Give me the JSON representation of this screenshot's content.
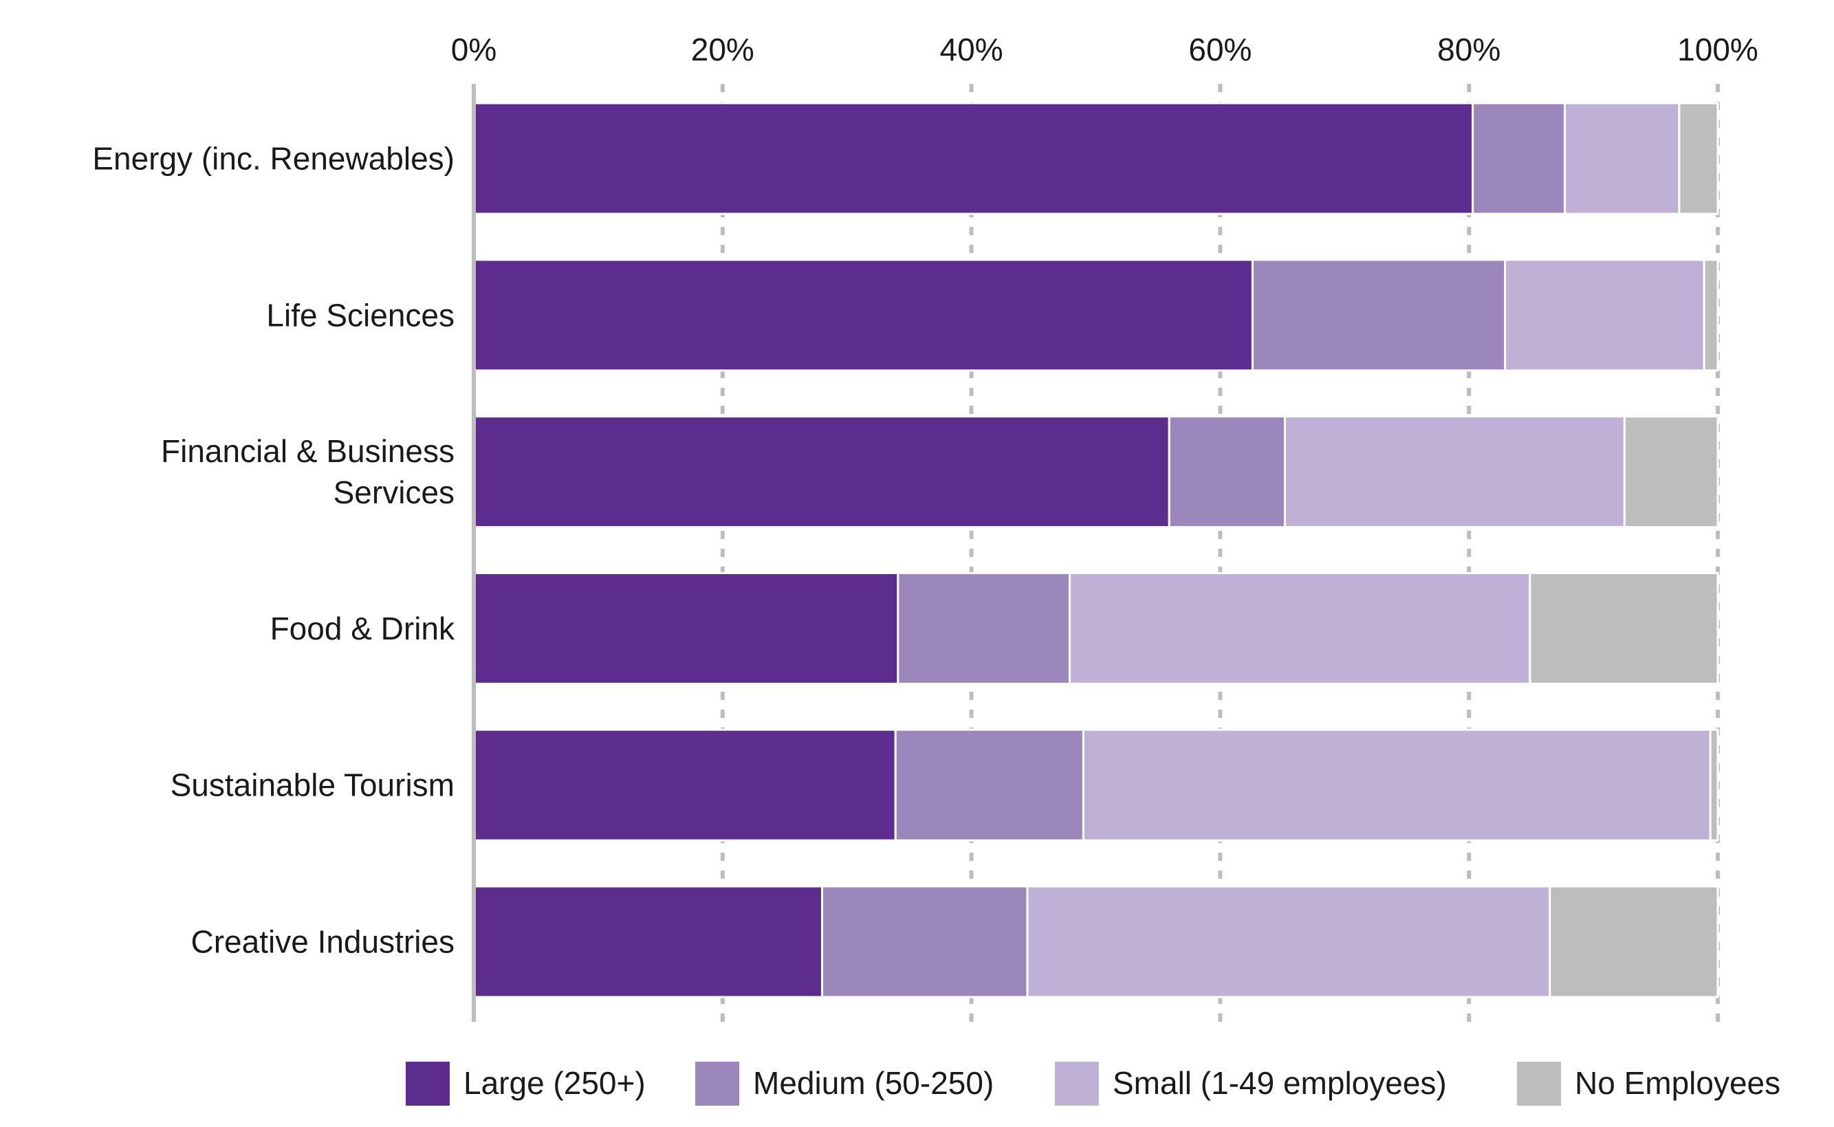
{
  "chart_data": {
    "type": "bar",
    "orientation": "horizontal",
    "stacked": true,
    "title": "",
    "xlabel": "",
    "ylabel": "",
    "xlim": [
      0,
      100
    ],
    "x_ticks": [
      {
        "value": 0,
        "label": "0%"
      },
      {
        "value": 20,
        "label": "20%"
      },
      {
        "value": 40,
        "label": "40%"
      },
      {
        "value": 60,
        "label": "60%"
      },
      {
        "value": 80,
        "label": "80%"
      },
      {
        "value": 100,
        "label": "100%"
      }
    ],
    "x_axis_position": "top",
    "grid": "vertical dashed",
    "legend_position": "bottom",
    "categories": [
      [
        "Energy (inc. Renewables)"
      ],
      [
        "Life Sciences"
      ],
      [
        "Financial & Business",
        "Services"
      ],
      [
        "Food & Drink"
      ],
      [
        "Sustainable Tourism"
      ],
      [
        "Creative Industries"
      ]
    ],
    "series": [
      {
        "name": "Large (250+)",
        "color": "#5c2d8e",
        "values": [
          80.3,
          62.6,
          55.9,
          34.1,
          33.9,
          28.0
        ]
      },
      {
        "name": "Medium (50-250)",
        "color": "#9c87bd",
        "values": [
          7.4,
          20.3,
          9.3,
          13.8,
          15.1,
          16.5
        ]
      },
      {
        "name": "Small (1-49 employees)",
        "color": "#bfb0d6",
        "values": [
          9.2,
          16.0,
          27.3,
          37.0,
          50.4,
          42.0
        ]
      },
      {
        "name": "No Employees",
        "color": "#bdbdbd",
        "values": [
          3.1,
          1.1,
          7.5,
          15.1,
          0.6,
          13.5
        ]
      }
    ]
  }
}
